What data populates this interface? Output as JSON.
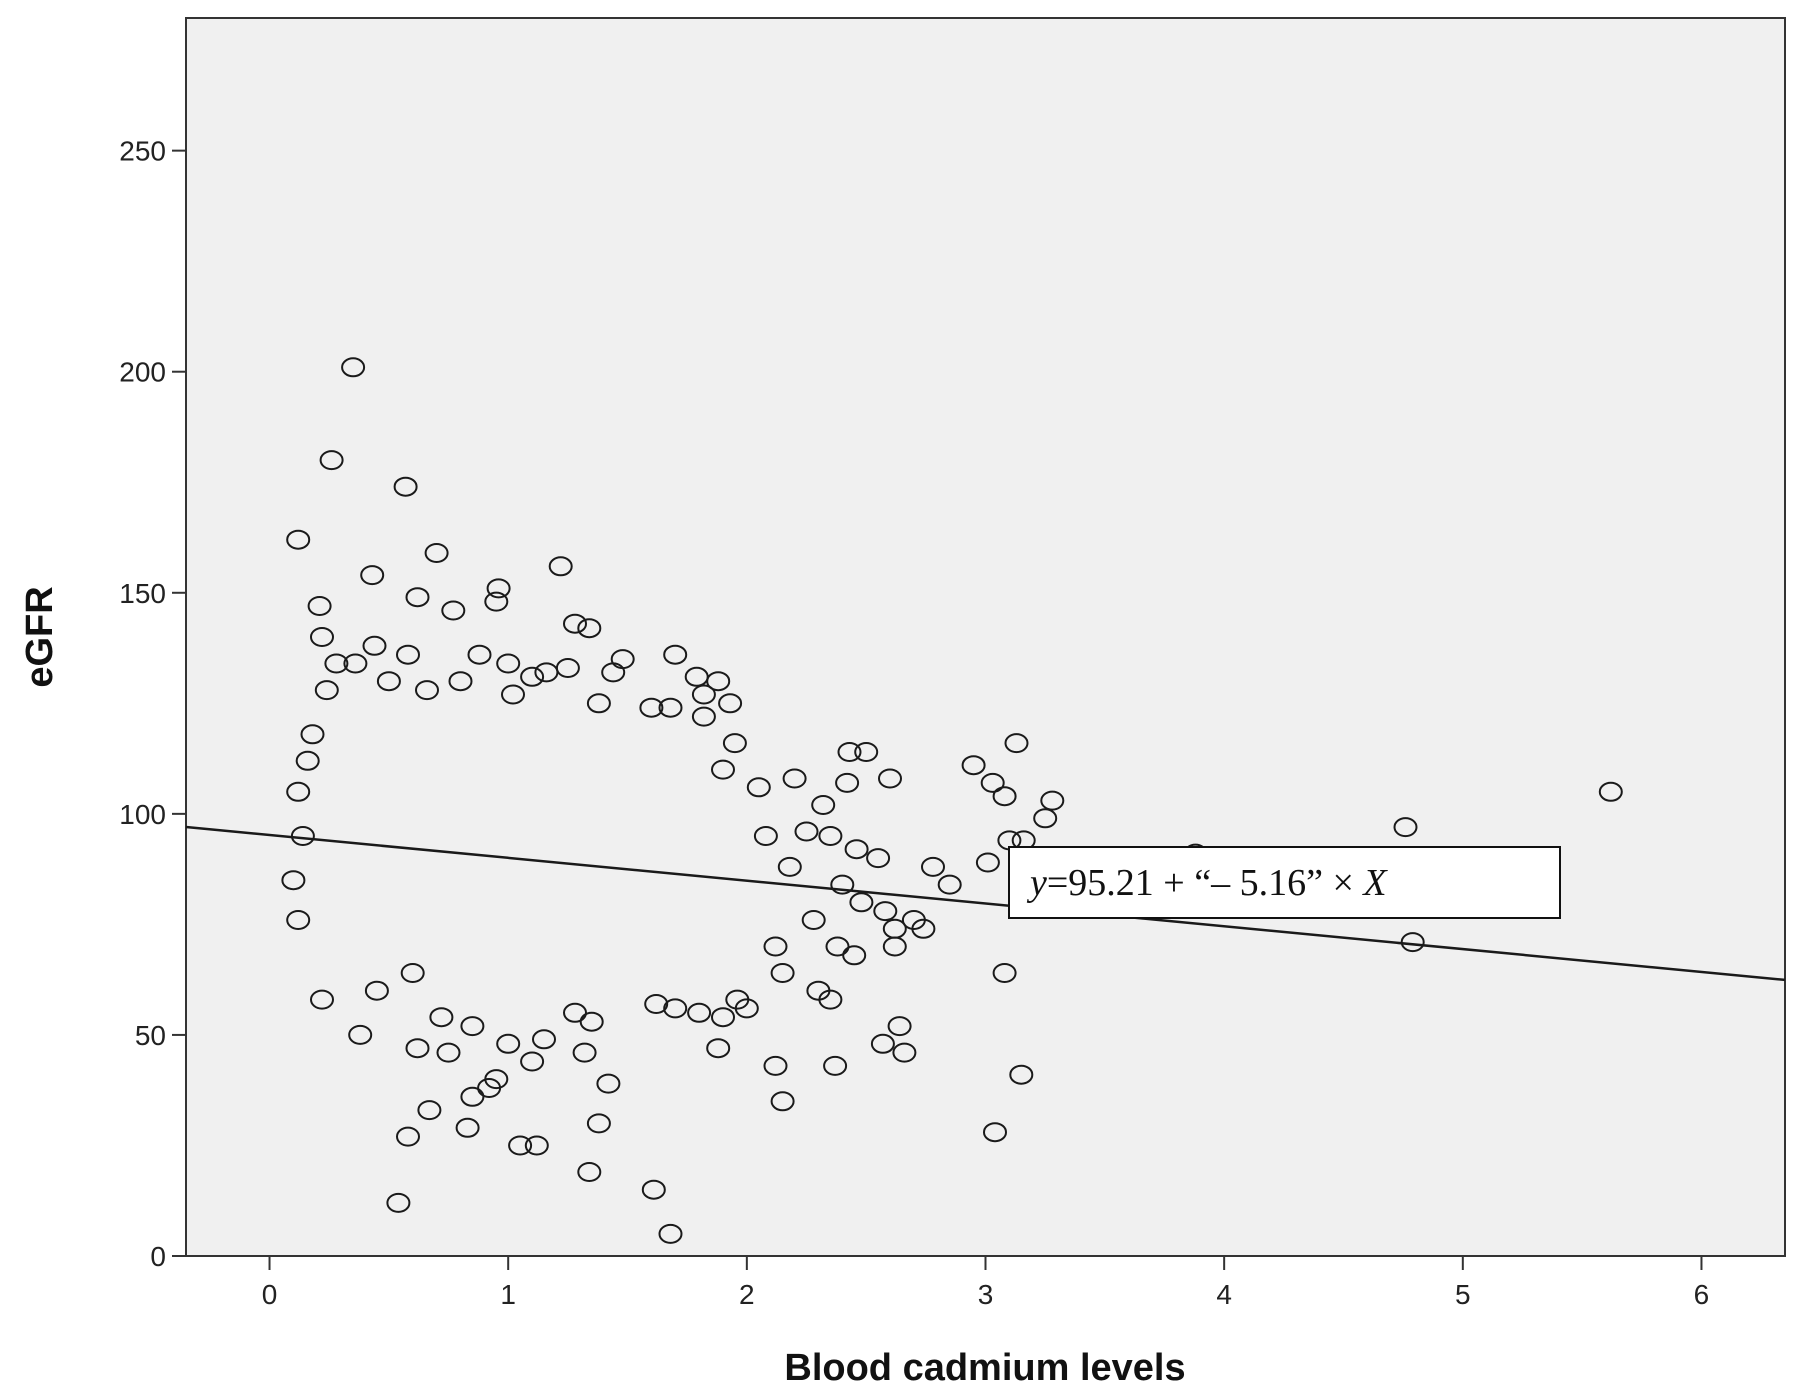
{
  "chart_data": {
    "type": "scatter",
    "title": "",
    "xlabel": "Blood cadmium levels",
    "ylabel": "eGFR",
    "xlim": [
      -0.35,
      6.35
    ],
    "ylim": [
      0,
      280
    ],
    "x_ticks": [
      0,
      1,
      2,
      3,
      4,
      5,
      6
    ],
    "y_ticks": [
      0,
      50,
      100,
      150,
      200,
      250
    ],
    "grid": false,
    "colors": {
      "plot_background": "#f0f0f0",
      "marker_stroke": "#1a1a1a",
      "line": "#1a1a1a",
      "axis": "#333333"
    },
    "regression": {
      "intercept": 95.21,
      "slope": -5.16,
      "equation": {
        "y_var": "y",
        "body": "=95.21 + “– 5.16” × ",
        "x_var": "X"
      }
    },
    "series": [
      {
        "marker": "open-circle",
        "points": [
          [
            0.35,
            201
          ],
          [
            0.26,
            180
          ],
          [
            0.57,
            174
          ],
          [
            0.12,
            162
          ],
          [
            0.7,
            159
          ],
          [
            1.22,
            156
          ],
          [
            0.43,
            154
          ],
          [
            0.96,
            151
          ],
          [
            0.62,
            149
          ],
          [
            0.21,
            147
          ],
          [
            0.77,
            146
          ],
          [
            0.95,
            148
          ],
          [
            1.28,
            143
          ],
          [
            1.34,
            142
          ],
          [
            0.22,
            140
          ],
          [
            0.44,
            138
          ],
          [
            1.7,
            136
          ],
          [
            1.48,
            135
          ],
          [
            1.1,
            131
          ],
          [
            1.44,
            132
          ],
          [
            1.38,
            125
          ],
          [
            1.79,
            131
          ],
          [
            1.88,
            130
          ],
          [
            1.82,
            127
          ],
          [
            1.68,
            124
          ],
          [
            1.6,
            124
          ],
          [
            1.93,
            125
          ],
          [
            1.82,
            122
          ],
          [
            1.95,
            116
          ],
          [
            2.2,
            108
          ],
          [
            2.43,
            114
          ],
          [
            2.5,
            114
          ],
          [
            2.6,
            108
          ],
          [
            2.42,
            107
          ],
          [
            2.32,
            102
          ],
          [
            2.05,
            106
          ],
          [
            1.9,
            110
          ],
          [
            2.08,
            95
          ],
          [
            2.25,
            96
          ],
          [
            2.46,
            92
          ],
          [
            2.55,
            90
          ],
          [
            2.35,
            95
          ],
          [
            2.18,
            88
          ],
          [
            2.4,
            84
          ],
          [
            2.48,
            80
          ],
          [
            2.28,
            76
          ],
          [
            2.12,
            70
          ],
          [
            2.38,
            70
          ],
          [
            2.58,
            78
          ],
          [
            2.62,
            74
          ],
          [
            2.7,
            76
          ],
          [
            2.74,
            74
          ],
          [
            2.45,
            68
          ],
          [
            2.62,
            70
          ],
          [
            2.15,
            64
          ],
          [
            2.3,
            60
          ],
          [
            2.35,
            58
          ],
          [
            1.96,
            58
          ],
          [
            2.0,
            56
          ],
          [
            1.9,
            54
          ],
          [
            1.8,
            55
          ],
          [
            1.7,
            56
          ],
          [
            1.62,
            57
          ],
          [
            1.88,
            47
          ],
          [
            2.12,
            43
          ],
          [
            2.37,
            43
          ],
          [
            2.64,
            52
          ],
          [
            2.57,
            48
          ],
          [
            2.66,
            46
          ],
          [
            2.15,
            35
          ],
          [
            1.42,
            39
          ],
          [
            1.38,
            30
          ],
          [
            1.34,
            19
          ],
          [
            1.61,
            15
          ],
          [
            1.68,
            5
          ],
          [
            0.54,
            12
          ],
          [
            0.58,
            27
          ],
          [
            0.67,
            33
          ],
          [
            0.83,
            29
          ],
          [
            0.85,
            36
          ],
          [
            0.92,
            38
          ],
          [
            0.95,
            40
          ],
          [
            1.05,
            25
          ],
          [
            1.12,
            25
          ],
          [
            1.1,
            44
          ],
          [
            0.75,
            46
          ],
          [
            0.62,
            47
          ],
          [
            0.38,
            50
          ],
          [
            0.22,
            58
          ],
          [
            0.45,
            60
          ],
          [
            0.6,
            64
          ],
          [
            0.72,
            54
          ],
          [
            0.85,
            52
          ],
          [
            1.0,
            48
          ],
          [
            1.15,
            49
          ],
          [
            1.28,
            55
          ],
          [
            1.35,
            53
          ],
          [
            1.32,
            46
          ],
          [
            0.12,
            76
          ],
          [
            0.1,
            85
          ],
          [
            0.14,
            95
          ],
          [
            0.12,
            105
          ],
          [
            0.16,
            112
          ],
          [
            0.18,
            118
          ],
          [
            0.24,
            128
          ],
          [
            0.28,
            134
          ],
          [
            0.36,
            134
          ],
          [
            0.5,
            130
          ],
          [
            0.58,
            136
          ],
          [
            0.66,
            128
          ],
          [
            0.8,
            130
          ],
          [
            0.88,
            136
          ],
          [
            1.0,
            134
          ],
          [
            1.02,
            127
          ],
          [
            1.16,
            132
          ],
          [
            1.25,
            133
          ],
          [
            2.78,
            88
          ],
          [
            2.85,
            84
          ],
          [
            2.95,
            111
          ],
          [
            3.03,
            107
          ],
          [
            3.08,
            104
          ],
          [
            3.13,
            116
          ],
          [
            3.28,
            103
          ],
          [
            3.25,
            99
          ],
          [
            3.1,
            94
          ],
          [
            3.16,
            94
          ],
          [
            3.01,
            89
          ],
          [
            3.08,
            64
          ],
          [
            3.15,
            41
          ],
          [
            3.04,
            28
          ],
          [
            3.88,
            91
          ],
          [
            4.76,
            97
          ],
          [
            4.79,
            71
          ],
          [
            5.62,
            105
          ]
        ]
      }
    ]
  }
}
